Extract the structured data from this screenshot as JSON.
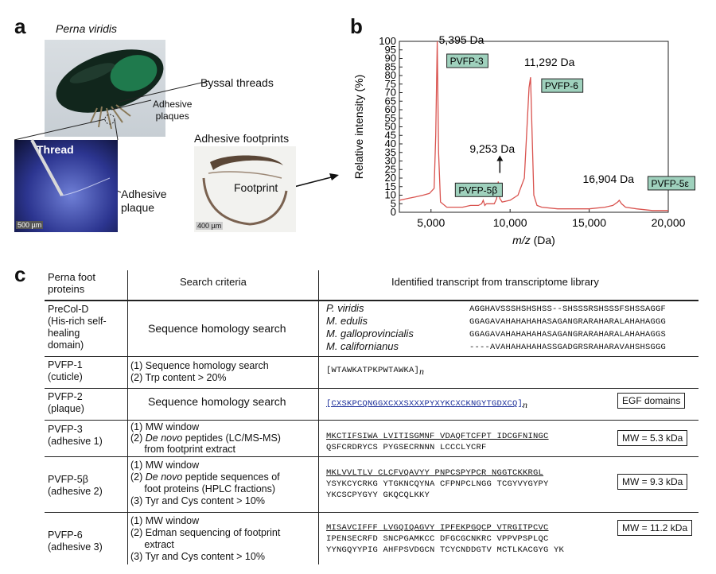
{
  "panel_a": {
    "label": "a",
    "species": "Perna viridis",
    "byssal_threads": "Byssal threads",
    "adhesive_plaques": "Adhesive\nplaques",
    "thread": "Thread",
    "adhesive_plaque": "Adhesive\nplaque",
    "scale_1": "500 µm",
    "footprints_title": "Adhesive footprints",
    "footprint": "Footprint",
    "scale_2": "400 µm"
  },
  "panel_b": {
    "label": "b",
    "ylabel": "Relative intensity (%)",
    "xlabel_italic": "m/z",
    "xlabel_unit": " (Da)",
    "peak_labels": [
      {
        "mass": "5,395 Da",
        "name": "PVFP-3"
      },
      {
        "mass": "11,292 Da",
        "name": "PVFP-6"
      },
      {
        "mass": "9,253 Da",
        "name": "PVFP-5β"
      },
      {
        "mass": "16,904 Da",
        "name": "PVFP-5ε"
      }
    ]
  },
  "chart_data": {
    "type": "line",
    "xlabel": "m/z (Da)",
    "ylabel": "Relative intensity (%)",
    "xlim": [
      3000,
      20000
    ],
    "ylim": [
      0,
      100
    ],
    "xticks": [
      "5,000",
      "10,000",
      "15,000",
      "20,000"
    ],
    "yticks": [
      "0",
      "5",
      "10",
      "15",
      "20",
      "25",
      "30",
      "35",
      "40",
      "45",
      "50",
      "55",
      "60",
      "65",
      "70",
      "75",
      "80",
      "85",
      "90",
      "95",
      "100"
    ],
    "x": [
      3000,
      3500,
      4000,
      4500,
      4900,
      5200,
      5300,
      5395,
      5480,
      5600,
      6000,
      6500,
      7000,
      7500,
      8000,
      8200,
      8300,
      8400,
      8500,
      9000,
      9150,
      9253,
      9350,
      9500,
      10000,
      10500,
      10900,
      11100,
      11200,
      11292,
      11380,
      11500,
      11700,
      12000,
      13000,
      14000,
      15000,
      16000,
      16500,
      16800,
      16904,
      17050,
      17300,
      18000,
      19000,
      20000
    ],
    "y": [
      7,
      8,
      9,
      10,
      11,
      14,
      45,
      100,
      35,
      6,
      3,
      3,
      3,
      4,
      4,
      5,
      7,
      4,
      5,
      5,
      8,
      18,
      8,
      6,
      7,
      10,
      20,
      55,
      73,
      79,
      50,
      10,
      4,
      3,
      2,
      2,
      2,
      3,
      4,
      6,
      7,
      5,
      3,
      2,
      1,
      1
    ]
  },
  "panel_c": {
    "label": "c",
    "headers": [
      "Perna foot\nproteins",
      "Search criteria",
      "Identified transcript from transcriptome library"
    ],
    "rows": [
      {
        "protein": "PreCol-D\n(His-rich self-\nhealing\ndomain)",
        "criteria": "Sequence homology search",
        "species": [
          "P. viridis",
          "M. edulis",
          "M. galloprovincialis",
          "M. californianus"
        ],
        "seqs": [
          "AGGHAVSSSHSHSHSS--SHSSSRSHSSSFSHSSAGGF",
          "GGAGAVAHAHAHAHASAGANGRARAHARALAHAHAGGG",
          "GGAGAVAHAHAHAHASAGANGRARAHARALAHAHAGGS",
          "----AVAHAHAHAHASSGADGRSRAHARAVAHSHSGGG"
        ]
      },
      {
        "protein": "PVFP-1\n(cuticle)",
        "criteria": "(1) Sequence homology search\n(2) Trp content > 20%",
        "seq": "[WTAWKATPKPWTAWKA]",
        "sub": "n"
      },
      {
        "protein": "PVFP-2\n(plaque)",
        "criteria": "Sequence homology search",
        "seq": "[CXSKPCQNGGXCXXSXXXPYXYKCXCKNGYTGDXCQ]",
        "sub": "n",
        "box": "EGF domains"
      },
      {
        "protein": "PVFP-3\n(adhesive 1)",
        "criteria_1": "(1) MW window",
        "criteria_2a": "(2) ",
        "criteria_2b": "De novo",
        "criteria_2c": " peptides (LC/MS-MS)",
        "criteria_3": "     from footprint extract",
        "seq_lines": [
          "MKCTIFSIWA LVITISGMNF VDAQFTCFPT IDCGFNINGC",
          "QSFCRDRYCS PYGSECRNNN LCCCLYCRF"
        ],
        "box": "MW = 5.3 kDa"
      },
      {
        "protein": "PVFP-5β\n(adhesive 2)",
        "criteria_1": "(1) MW window",
        "criteria_2a": "(2) ",
        "criteria_2b": "De novo",
        "criteria_2c": " peptide sequences of",
        "criteria_3": "     foot proteins (HPLC fractions)",
        "criteria_4": "(3) Tyr and Cys content > 10%",
        "seq_lines": [
          "MKLVVLTLV CLCFVQAVYY PNPCSPYPCR NGGTCKKRGL",
          "YSYKCYCRKG YTGKNCQYNA CFPNPCLNGG TCGYVYGYPY",
          "YKCSCPYGYY GKQCQLKKY"
        ],
        "box": "MW = 9.3 kDa"
      },
      {
        "protein": "PVFP-6\n(adhesive 3)",
        "criteria_1": "(1) MW window",
        "criteria_2": "(2) Edman sequencing of footprint\n     extract",
        "criteria_3": "(3) Tyr and Cys content > 10%",
        "seq_lines": [
          "MISAVCIFFF LVGQIQAGVY IPFEKPGQCP VTRGITPCVC",
          "IPENSECRFD SNCPGAMKCC DFGCGCNKRC VPPVPSPLQC",
          "YYNGQYYPIG AHFPSVDGCN TCYCNDDGTV MCTLKACGYG YK"
        ],
        "box": "MW = 11.2 kDa"
      }
    ]
  },
  "colors": {
    "line": "#d9534f",
    "tag": "#9fd1bd",
    "highlight_yellow": "#f5f0a0",
    "highlight_pink": "#f4b3bd",
    "highlight_blue": "#a9c7e8",
    "red_residue": "#d0202a",
    "blue_residue": "#1c2f9a"
  }
}
